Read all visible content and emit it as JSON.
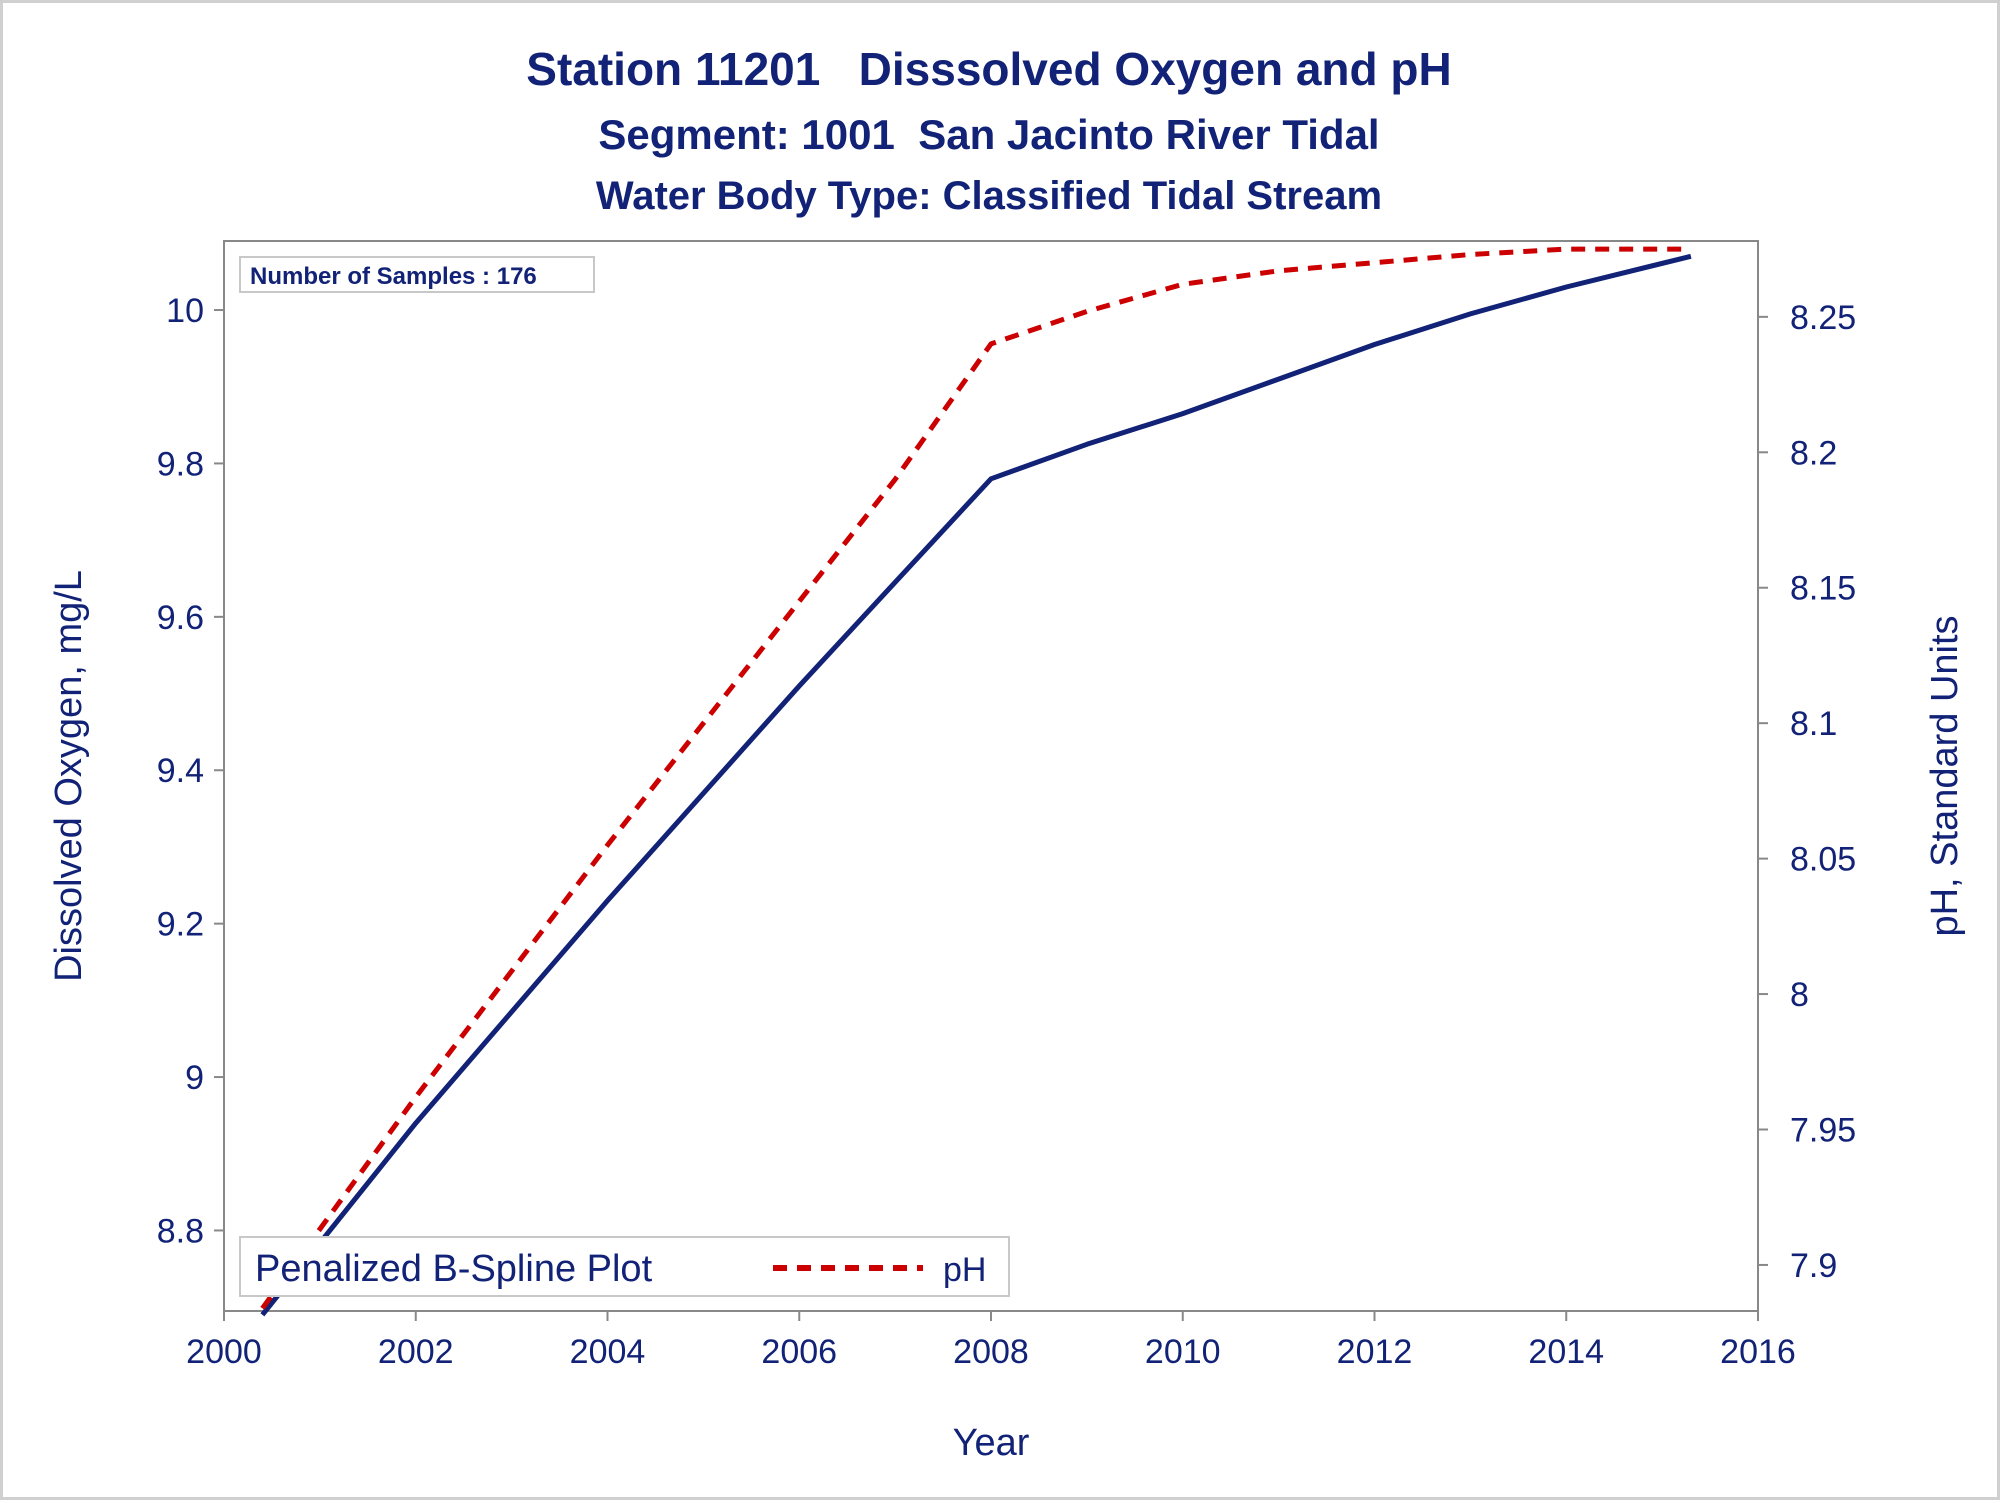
{
  "titles": {
    "line1": "Station 11201   Disssolved Oxygen and pH",
    "line2": "Segment: 1001  San Jacinto River Tidal",
    "line3": "Water Body Type: Classified Tidal Stream"
  },
  "annotation": "Number of Samples : 176",
  "legend": {
    "title": "Penalized B-Spline Plot",
    "entries": [
      "pH"
    ]
  },
  "colors": {
    "do_line": "#112277",
    "ph_line": "#cc0000",
    "text": "#112277",
    "axis": "#888888"
  },
  "chart_data": {
    "type": "line",
    "xlabel": "Year",
    "ylabel": "Dissolved Oxygen, mg/L",
    "y2label": "pH, Standard Units",
    "xlim": [
      2000,
      2016
    ],
    "ylim": [
      8.695,
      10.09
    ],
    "y2lim": [
      7.883,
      8.278
    ],
    "xticks": [
      2000,
      2002,
      2004,
      2006,
      2008,
      2010,
      2012,
      2014,
      2016
    ],
    "yticks": [
      8.8,
      9,
      9.2,
      9.4,
      9.6,
      9.8,
      10
    ],
    "ytick_labels": [
      "8.8",
      "9",
      "9.2",
      "9.4",
      "9.6",
      "9.8",
      "10"
    ],
    "y2ticks": [
      7.9,
      7.95,
      8,
      8.05,
      8.1,
      8.15,
      8.2,
      8.25
    ],
    "y2tick_labels": [
      "7.9",
      "7.95",
      "8",
      "8.05",
      "8.1",
      "8.15",
      "8.2",
      "8.25"
    ],
    "grid": false,
    "legend_position": "bottom-left",
    "series": [
      {
        "axis": "left",
        "style": "solid",
        "x": [
          2000.4,
          2002,
          2004,
          2006,
          2007,
          2008,
          2009,
          2010,
          2011,
          2012,
          2013,
          2014,
          2015.3
        ],
        "y": [
          8.69,
          8.94,
          9.23,
          9.51,
          9.645,
          9.78,
          9.825,
          9.865,
          9.91,
          9.955,
          9.995,
          10.03,
          10.07
        ]
      },
      {
        "name": "pH",
        "axis": "right",
        "style": "dashed",
        "x": [
          2000.4,
          2002,
          2004,
          2006,
          2007,
          2008,
          2009,
          2010,
          2011,
          2012,
          2013,
          2014,
          2015.3
        ],
        "y": [
          7.884,
          7.962,
          8.055,
          8.145,
          8.19,
          8.24,
          8.252,
          8.262,
          8.267,
          8.27,
          8.273,
          8.275,
          8.275
        ]
      }
    ]
  }
}
